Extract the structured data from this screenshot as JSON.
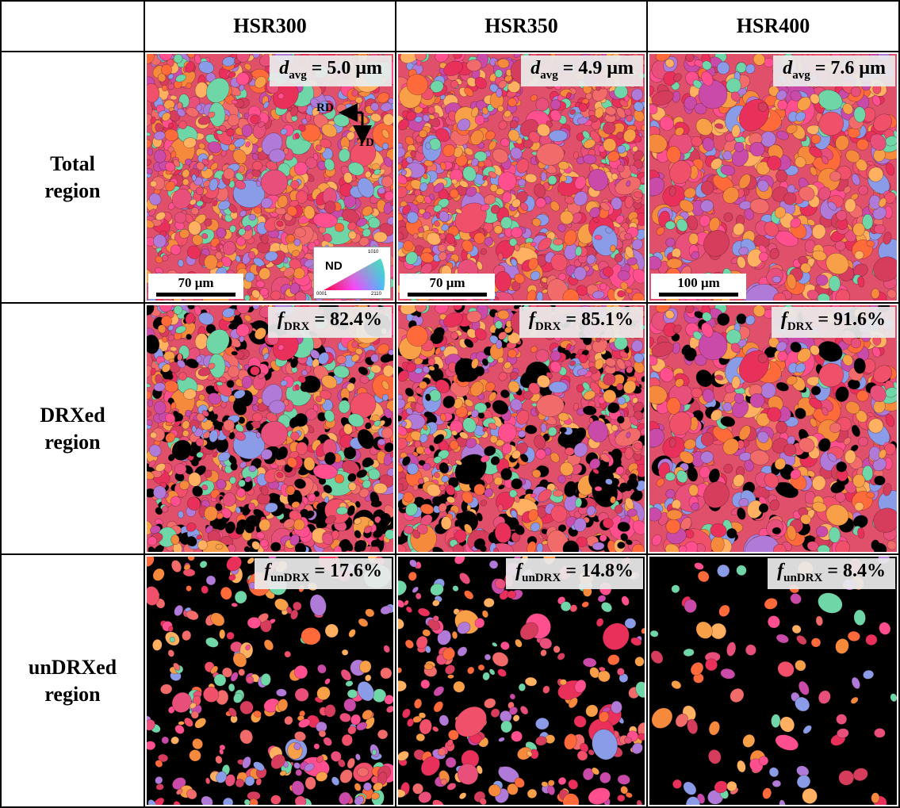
{
  "columns": [
    "HSR300",
    "HSR350",
    "HSR400"
  ],
  "rows": [
    {
      "label_line1": "Total",
      "label_line2": "region"
    },
    {
      "label_line1": "DRXed",
      "label_line2": "region"
    },
    {
      "label_line1": "unDRXed",
      "label_line2": "region"
    }
  ],
  "total": [
    {
      "symbol": "d",
      "subscript": "avg",
      "value": "= 5.0 μm",
      "scale_label": "70 μm"
    },
    {
      "symbol": "d",
      "subscript": "avg",
      "value": "= 4.9 μm",
      "scale_label": "70 μm"
    },
    {
      "symbol": "d",
      "subscript": "avg",
      "value": "= 7.6 μm",
      "scale_label": "100 μm"
    }
  ],
  "drx": [
    {
      "symbol": "f",
      "subscript": "DRX",
      "value": "= 82.4%",
      "fraction": 0.824
    },
    {
      "symbol": "f",
      "subscript": "DRX",
      "value": "= 85.1%",
      "fraction": 0.851
    },
    {
      "symbol": "f",
      "subscript": "DRX",
      "value": "= 91.6%",
      "fraction": 0.916
    }
  ],
  "undrx": [
    {
      "symbol": "f",
      "subscript": "unDRX",
      "value": "= 17.6%",
      "fraction": 0.176
    },
    {
      "symbol": "f",
      "subscript": "unDRX",
      "value": "= 14.8%",
      "fraction": 0.148
    },
    {
      "symbol": "f",
      "subscript": "unDRX",
      "value": "= 8.4%",
      "fraction": 0.084
    }
  ],
  "coordinate_system": {
    "rd": "RD",
    "td": "TD"
  },
  "ipf_legend": {
    "title": "ND",
    "top": "1010",
    "bottom_left": "0001",
    "bottom_right": "2110"
  },
  "colors": {
    "grain_palette": [
      "#e8305a",
      "#f0506a",
      "#ff6a3a",
      "#f58a3c",
      "#e84f7a",
      "#ff4f8f",
      "#d63c5c",
      "#f7a047",
      "#ffb060",
      "#f26b6b",
      "#c94aa8",
      "#b07ad8",
      "#8a9be8",
      "#6fd6a8",
      "#c8e860",
      "#f0e070",
      "#ffffff",
      "#ff8fc0"
    ],
    "masked": "#000000"
  }
}
